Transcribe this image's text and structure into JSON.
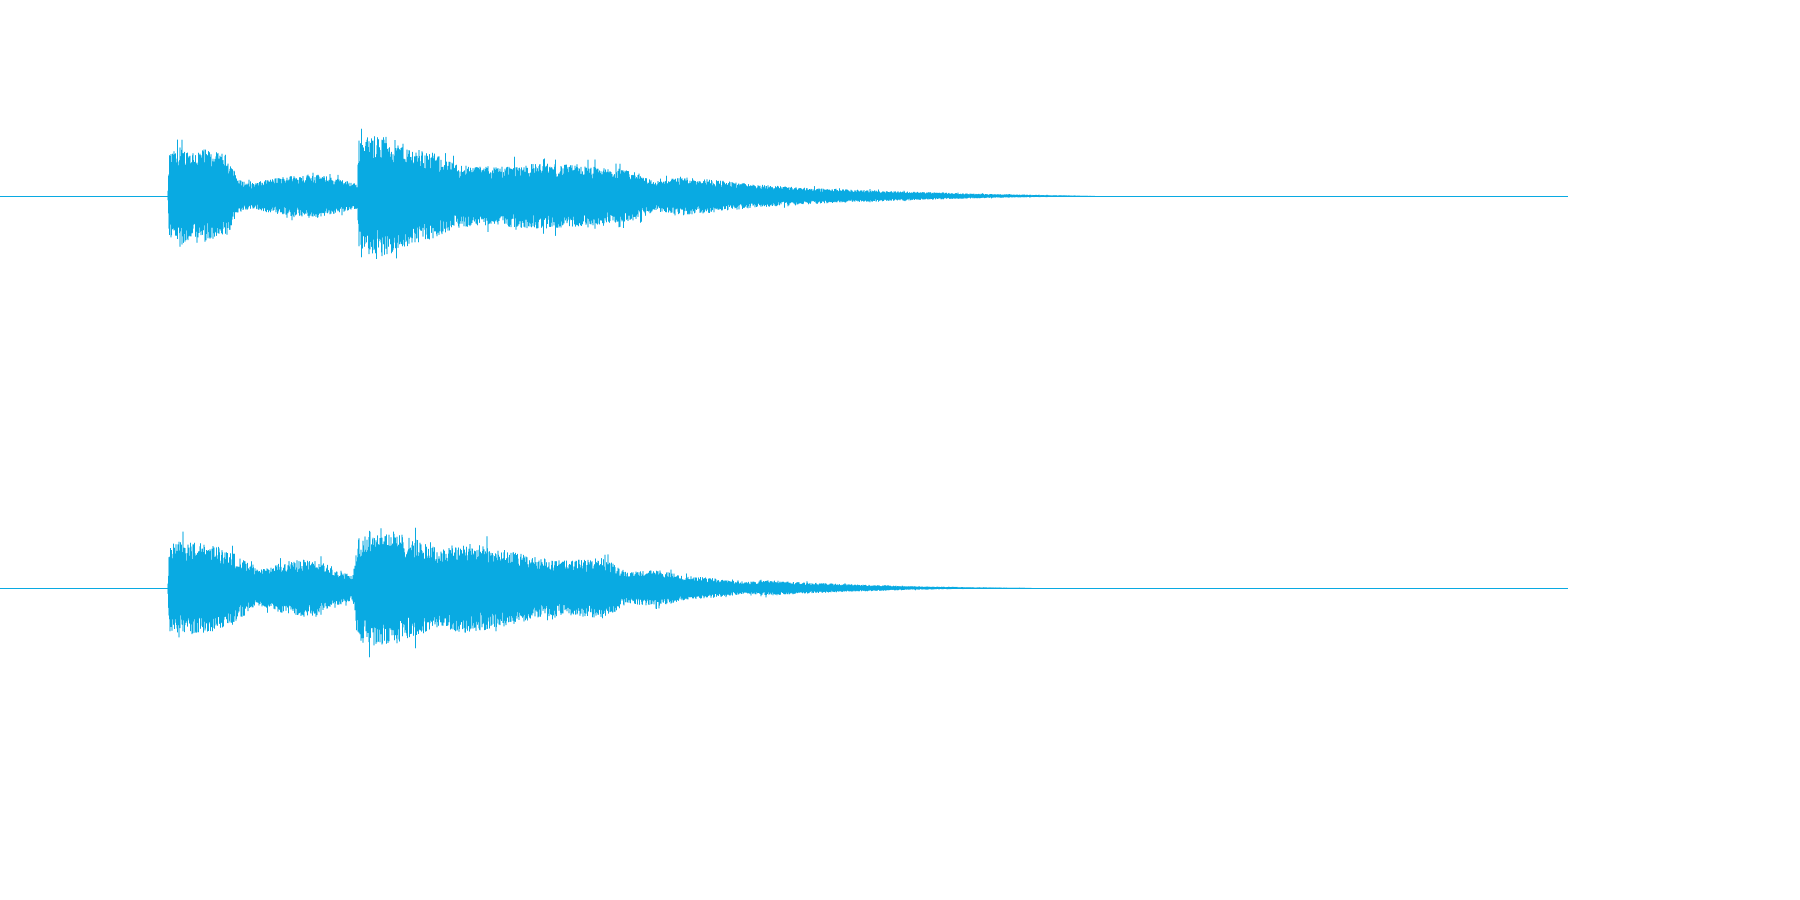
{
  "colors": {
    "background": "#ffffff",
    "waveform": "#09aae2"
  },
  "chart_data": {
    "type": "area",
    "description_kind": "stereo audio waveform",
    "x_domain": [
      0,
      1
    ],
    "y_domain": [
      -1,
      1
    ],
    "channels": [
      {
        "envelope": [
          [
            0.0,
            0.0
          ],
          [
            0.107,
            0.0
          ],
          [
            0.108,
            0.45
          ],
          [
            0.115,
            0.48
          ],
          [
            0.13,
            0.48
          ],
          [
            0.145,
            0.42
          ],
          [
            0.152,
            0.17
          ],
          [
            0.16,
            0.13
          ],
          [
            0.18,
            0.2
          ],
          [
            0.2,
            0.23
          ],
          [
            0.215,
            0.18
          ],
          [
            0.228,
            0.13
          ],
          [
            0.229,
            0.6
          ],
          [
            0.245,
            0.62
          ],
          [
            0.262,
            0.5
          ],
          [
            0.275,
            0.45
          ],
          [
            0.29,
            0.33
          ],
          [
            0.31,
            0.3
          ],
          [
            0.345,
            0.34
          ],
          [
            0.38,
            0.3
          ],
          [
            0.405,
            0.25
          ],
          [
            0.418,
            0.15
          ],
          [
            0.435,
            0.2
          ],
          [
            0.455,
            0.17
          ],
          [
            0.48,
            0.12
          ],
          [
            0.52,
            0.08
          ],
          [
            0.57,
            0.05
          ],
          [
            0.62,
            0.025
          ],
          [
            0.66,
            0.012
          ],
          [
            0.69,
            0.004
          ],
          [
            0.7,
            0.0
          ],
          [
            1.0,
            0.0
          ]
        ]
      },
      {
        "envelope": [
          [
            0.0,
            0.0
          ],
          [
            0.107,
            0.0
          ],
          [
            0.108,
            0.45
          ],
          [
            0.12,
            0.48
          ],
          [
            0.135,
            0.45
          ],
          [
            0.15,
            0.35
          ],
          [
            0.165,
            0.18
          ],
          [
            0.18,
            0.26
          ],
          [
            0.195,
            0.3
          ],
          [
            0.21,
            0.24
          ],
          [
            0.225,
            0.12
          ],
          [
            0.229,
            0.55
          ],
          [
            0.245,
            0.62
          ],
          [
            0.262,
            0.52
          ],
          [
            0.28,
            0.4
          ],
          [
            0.295,
            0.47
          ],
          [
            0.32,
            0.4
          ],
          [
            0.345,
            0.3
          ],
          [
            0.36,
            0.28
          ],
          [
            0.385,
            0.31
          ],
          [
            0.4,
            0.16
          ],
          [
            0.418,
            0.19
          ],
          [
            0.435,
            0.13
          ],
          [
            0.455,
            0.1
          ],
          [
            0.475,
            0.06
          ],
          [
            0.49,
            0.08
          ],
          [
            0.51,
            0.06
          ],
          [
            0.54,
            0.04
          ],
          [
            0.58,
            0.02
          ],
          [
            0.62,
            0.008
          ],
          [
            0.65,
            0.003
          ],
          [
            0.66,
            0.0
          ],
          [
            1.0,
            0.0
          ]
        ]
      }
    ]
  }
}
